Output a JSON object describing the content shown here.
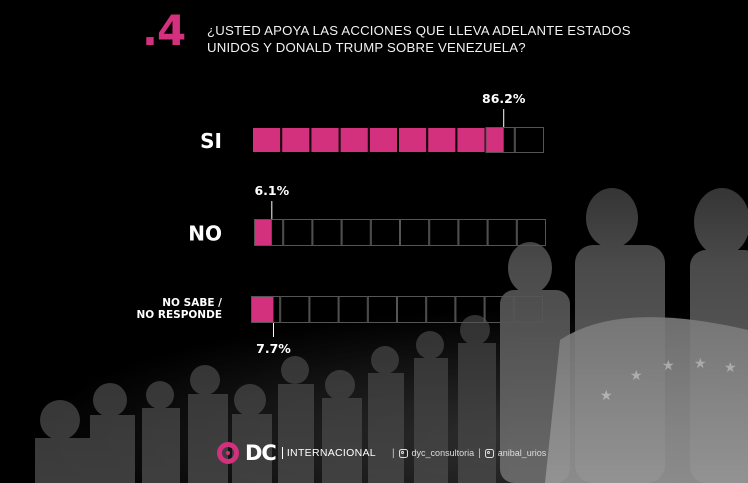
{
  "header": {
    "question_number": ".4",
    "question": "¿USTED APOYA LAS ACCIONES QUE LLEVA ADELANTE ESTADOS UNIDOS Y DONALD TRUMP SOBRE VENEZUELA?"
  },
  "chart_data": {
    "type": "bar",
    "orientation": "horizontal",
    "categories": [
      "SI",
      "NO",
      "NO SABE / NO RESPONDE"
    ],
    "values": [
      86.2,
      6.1,
      7.7
    ],
    "value_labels": [
      "86.2%",
      "6.1%",
      "7.7%"
    ],
    "xlim": [
      0,
      100
    ],
    "segments": 10,
    "colors": {
      "fill": "#d3307e",
      "empty_border": "#555555"
    }
  },
  "footer": {
    "brand": "DC",
    "brand_suffix": "INTERNACIONAL",
    "social": [
      {
        "icon": "instagram-icon",
        "handle": "dyc_consultoria"
      },
      {
        "icon": "instagram-icon",
        "handle": "anibal_urios"
      }
    ]
  }
}
